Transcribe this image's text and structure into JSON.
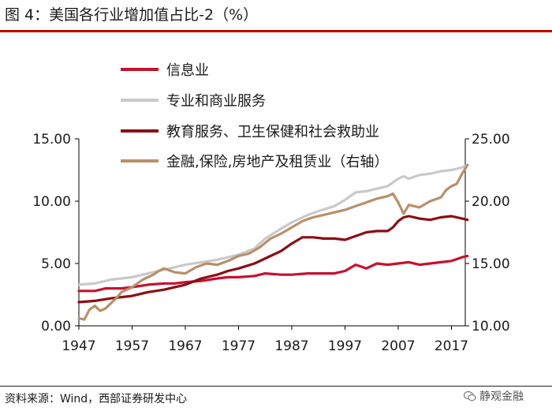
{
  "title": "图 4：美国各行业增加值占比-2（%）",
  "source": "资料来源：Wind，西部证券研发中心",
  "watermark": "静观金融",
  "chart_data": {
    "type": "line",
    "title": "图 4：美国各行业增加值占比-2（%）",
    "x_ticks": [
      "1947",
      "1957",
      "1967",
      "1977",
      "1987",
      "1997",
      "2007",
      "2017"
    ],
    "y_left_ticks": [
      "0.00",
      "5.00",
      "10.00",
      "15.00"
    ],
    "y_right_ticks": [
      "10.00",
      "15.00",
      "20.00",
      "25.00"
    ],
    "ylim_left": [
      0,
      15
    ],
    "ylim_right": [
      10,
      25
    ],
    "xlim": [
      1947,
      2020
    ],
    "legend_position": "top-left",
    "grid": false,
    "series": [
      {
        "name": "信息业",
        "axis": "left",
        "color": "#c8102e",
        "points": [
          [
            1947,
            2.8
          ],
          [
            1950,
            2.8
          ],
          [
            1952,
            3.0
          ],
          [
            1955,
            3.0
          ],
          [
            1957,
            3.1
          ],
          [
            1960,
            3.3
          ],
          [
            1963,
            3.4
          ],
          [
            1965,
            3.4
          ],
          [
            1967,
            3.5
          ],
          [
            1970,
            3.6
          ],
          [
            1973,
            3.8
          ],
          [
            1975,
            3.9
          ],
          [
            1977,
            3.9
          ],
          [
            1980,
            4.0
          ],
          [
            1982,
            4.2
          ],
          [
            1985,
            4.1
          ],
          [
            1987,
            4.1
          ],
          [
            1990,
            4.2
          ],
          [
            1993,
            4.2
          ],
          [
            1995,
            4.2
          ],
          [
            1997,
            4.4
          ],
          [
            1999,
            4.9
          ],
          [
            2001,
            4.6
          ],
          [
            2003,
            5.0
          ],
          [
            2005,
            4.9
          ],
          [
            2007,
            5.0
          ],
          [
            2009,
            5.1
          ],
          [
            2011,
            4.9
          ],
          [
            2013,
            5.0
          ],
          [
            2015,
            5.1
          ],
          [
            2017,
            5.2
          ],
          [
            2019,
            5.5
          ],
          [
            2020,
            5.6
          ]
        ]
      },
      {
        "name": "专业和商业服务",
        "axis": "left",
        "color": "#c9c9c9",
        "points": [
          [
            1947,
            3.3
          ],
          [
            1950,
            3.4
          ],
          [
            1953,
            3.7
          ],
          [
            1957,
            3.9
          ],
          [
            1960,
            4.2
          ],
          [
            1963,
            4.5
          ],
          [
            1967,
            4.9
          ],
          [
            1970,
            5.1
          ],
          [
            1973,
            5.3
          ],
          [
            1977,
            5.7
          ],
          [
            1980,
            6.2
          ],
          [
            1982,
            7.0
          ],
          [
            1985,
            7.8
          ],
          [
            1987,
            8.3
          ],
          [
            1990,
            8.9
          ],
          [
            1992,
            9.2
          ],
          [
            1995,
            9.6
          ],
          [
            1997,
            10.1
          ],
          [
            1999,
            10.7
          ],
          [
            2001,
            10.8
          ],
          [
            2003,
            11.0
          ],
          [
            2005,
            11.2
          ],
          [
            2007,
            11.8
          ],
          [
            2008,
            12.0
          ],
          [
            2009,
            11.8
          ],
          [
            2011,
            12.1
          ],
          [
            2013,
            12.2
          ],
          [
            2015,
            12.4
          ],
          [
            2017,
            12.5
          ],
          [
            2019,
            12.7
          ],
          [
            2020,
            12.9
          ]
        ]
      },
      {
        "name": "教育服务、卫生保健和社会救助业",
        "axis": "left",
        "color": "#8b0f14",
        "points": [
          [
            1947,
            1.9
          ],
          [
            1950,
            2.0
          ],
          [
            1953,
            2.2
          ],
          [
            1957,
            2.4
          ],
          [
            1960,
            2.7
          ],
          [
            1963,
            2.9
          ],
          [
            1967,
            3.3
          ],
          [
            1970,
            3.8
          ],
          [
            1973,
            4.1
          ],
          [
            1975,
            4.4
          ],
          [
            1977,
            4.6
          ],
          [
            1980,
            5.0
          ],
          [
            1983,
            5.6
          ],
          [
            1985,
            6.0
          ],
          [
            1987,
            6.6
          ],
          [
            1989,
            7.1
          ],
          [
            1991,
            7.1
          ],
          [
            1993,
            7.0
          ],
          [
            1995,
            7.0
          ],
          [
            1997,
            6.9
          ],
          [
            1999,
            7.2
          ],
          [
            2001,
            7.5
          ],
          [
            2003,
            7.6
          ],
          [
            2005,
            7.6
          ],
          [
            2006,
            7.9
          ],
          [
            2007,
            8.4
          ],
          [
            2008,
            8.7
          ],
          [
            2009,
            8.8
          ],
          [
            2011,
            8.6
          ],
          [
            2013,
            8.5
          ],
          [
            2015,
            8.7
          ],
          [
            2017,
            8.8
          ],
          [
            2019,
            8.6
          ],
          [
            2020,
            8.5
          ]
        ]
      },
      {
        "name": "金融,保险,房地产及租赁业（右轴）",
        "axis": "right",
        "color": "#b8906a",
        "points": [
          [
            1947,
            10.6
          ],
          [
            1948,
            10.5
          ],
          [
            1949,
            11.3
          ],
          [
            1950,
            11.6
          ],
          [
            1951,
            11.2
          ],
          [
            1952,
            11.4
          ],
          [
            1953,
            11.8
          ],
          [
            1954,
            12.2
          ],
          [
            1955,
            12.7
          ],
          [
            1957,
            13.1
          ],
          [
            1959,
            13.7
          ],
          [
            1961,
            14.1
          ],
          [
            1962,
            14.4
          ],
          [
            1963,
            14.6
          ],
          [
            1965,
            14.3
          ],
          [
            1967,
            14.2
          ],
          [
            1969,
            14.7
          ],
          [
            1971,
            15.0
          ],
          [
            1973,
            14.9
          ],
          [
            1975,
            15.2
          ],
          [
            1977,
            15.6
          ],
          [
            1979,
            15.8
          ],
          [
            1981,
            16.3
          ],
          [
            1983,
            17.0
          ],
          [
            1985,
            17.4
          ],
          [
            1987,
            17.9
          ],
          [
            1989,
            18.4
          ],
          [
            1991,
            18.7
          ],
          [
            1993,
            18.9
          ],
          [
            1995,
            19.1
          ],
          [
            1997,
            19.3
          ],
          [
            1999,
            19.6
          ],
          [
            2001,
            19.9
          ],
          [
            2003,
            20.2
          ],
          [
            2005,
            20.4
          ],
          [
            2006,
            20.6
          ],
          [
            2007,
            19.9
          ],
          [
            2008,
            19.0
          ],
          [
            2009,
            19.7
          ],
          [
            2011,
            19.5
          ],
          [
            2013,
            20.0
          ],
          [
            2015,
            20.3
          ],
          [
            2016,
            20.9
          ],
          [
            2017,
            21.2
          ],
          [
            2018,
            21.4
          ],
          [
            2019,
            22.2
          ],
          [
            2020,
            22.9
          ]
        ]
      }
    ]
  }
}
